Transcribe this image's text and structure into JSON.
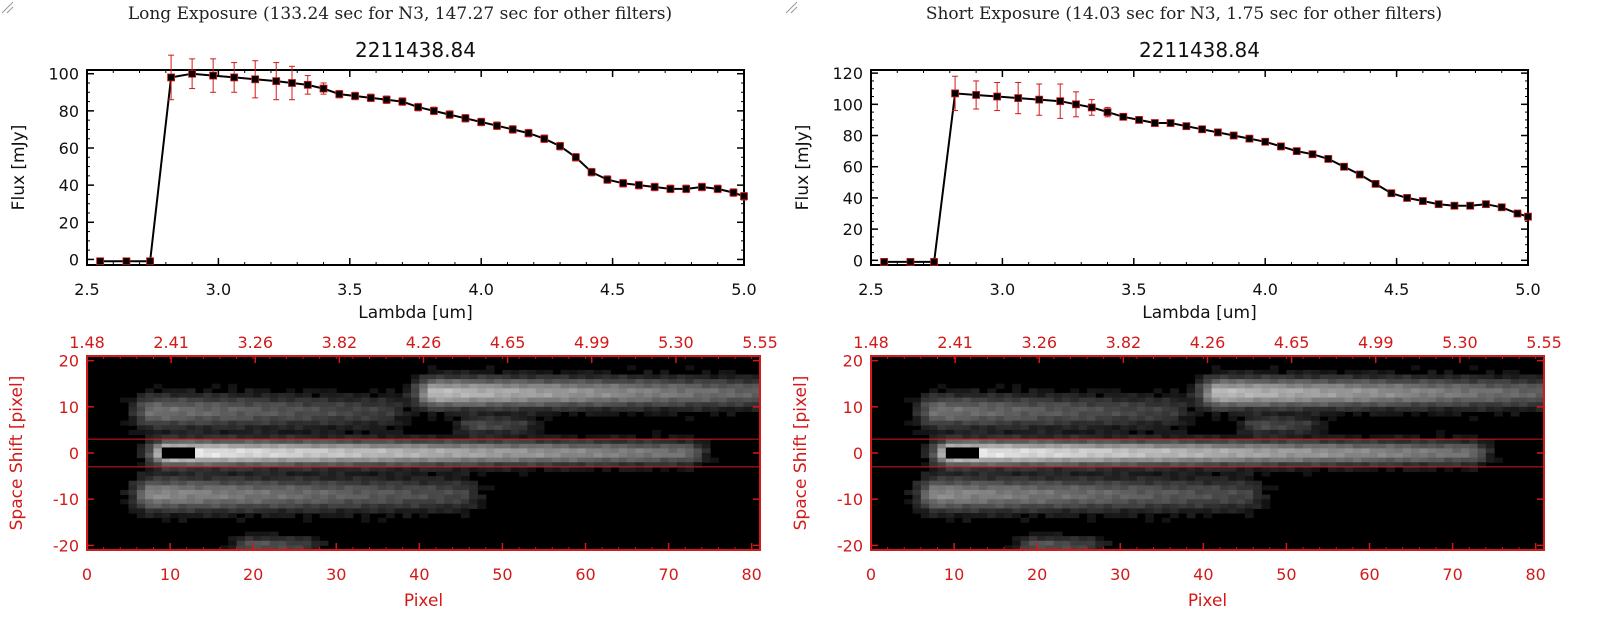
{
  "colors": {
    "red": "#d21a1a",
    "black": "#000000",
    "grey": "#333333"
  },
  "panels": [
    {
      "title": "Long Exposure (133.24 sec for N3, 147.27 sec for other filters)",
      "resize_icon": "resize-grip-icon"
    },
    {
      "title": "Short Exposure (14.03 sec for N3, 1.75 sec for other filters)",
      "resize_icon": "resize-grip-icon"
    }
  ],
  "chart_data": [
    {
      "type": "line",
      "title": "2211438.84",
      "xlabel": "Lambda [um]",
      "ylabel": "Flux [mJy]",
      "xlim": [
        2.5,
        5.0
      ],
      "ylim": [
        -3,
        102
      ],
      "xticks": [
        "2.5",
        "3.0",
        "3.5",
        "4.0",
        "4.5",
        "5.0"
      ],
      "yticks": [
        "0",
        "20",
        "40",
        "60",
        "80",
        "100"
      ],
      "ytick_values": [
        0,
        20,
        40,
        60,
        80,
        100
      ],
      "series": [
        {
          "name": "flux",
          "x": [
            2.55,
            2.65,
            2.74,
            2.82,
            2.9,
            2.98,
            3.06,
            3.14,
            3.22,
            3.28,
            3.34,
            3.4,
            3.46,
            3.52,
            3.58,
            3.64,
            3.7,
            3.76,
            3.82,
            3.88,
            3.94,
            4.0,
            4.06,
            4.12,
            4.18,
            4.24,
            4.3,
            4.36,
            4.42,
            4.48,
            4.54,
            4.6,
            4.66,
            4.72,
            4.78,
            4.84,
            4.9,
            4.96,
            5.0
          ],
          "y": [
            -1,
            -1,
            -1,
            98,
            100,
            99,
            98,
            97,
            96,
            95,
            94,
            92,
            89,
            88,
            87,
            86,
            85,
            82,
            80,
            78,
            76,
            74,
            72,
            70,
            68,
            65,
            61,
            55,
            47,
            43,
            41,
            40,
            39,
            38,
            38,
            39,
            38,
            36,
            34
          ],
          "yerr": [
            0,
            0,
            0,
            12,
            8,
            9,
            8,
            10,
            10,
            9,
            5,
            3,
            2,
            2,
            2,
            2,
            2,
            2,
            2,
            2,
            2,
            2,
            2,
            2,
            2,
            2,
            2,
            2,
            2,
            2,
            2,
            2,
            2,
            2,
            2,
            2,
            2,
            2,
            2
          ]
        }
      ]
    },
    {
      "type": "heatmap",
      "xlabel": "Pixel",
      "ylabel": "Space Shift [pixel]",
      "xlim": [
        0,
        81
      ],
      "ylim": [
        -21,
        21
      ],
      "xticks": [
        "0",
        "10",
        "20",
        "30",
        "40",
        "50",
        "60",
        "70",
        "80"
      ],
      "xtick_values": [
        0,
        10,
        20,
        30,
        40,
        50,
        60,
        70,
        80
      ],
      "yticks": [
        "20",
        "10",
        "0",
        "-10",
        "-20"
      ],
      "ytick_values": [
        20,
        10,
        0,
        -10,
        -20
      ],
      "top_axis_ticks": [
        "1.48",
        "2.41",
        "3.26",
        "3.82",
        "4.26",
        "4.65",
        "4.99",
        "5.30",
        "5.55"
      ],
      "band_lines": [
        3,
        -3
      ],
      "blobs": [
        {
          "x0": 10,
          "x1": 72,
          "y": 0,
          "h": 2.6,
          "amp": 0.95
        },
        {
          "x0": 42,
          "x1": 81,
          "y": 13,
          "h": 3.2,
          "amp": 0.75
        },
        {
          "x0": 8,
          "x1": 36,
          "y": 9,
          "h": 3.6,
          "amp": 0.45
        },
        {
          "x0": 8,
          "x1": 45,
          "y": -9,
          "h": 3.6,
          "amp": 0.55
        },
        {
          "x0": 20,
          "x1": 26,
          "y": -20,
          "h": 2.0,
          "amp": 0.35
        },
        {
          "x0": 47,
          "x1": 52,
          "y": 6,
          "h": 1.8,
          "amp": 0.3
        }
      ],
      "saturated": {
        "x0": 9,
        "x1": 13,
        "y": 0,
        "h": 1.2
      }
    },
    {
      "type": "line",
      "title": "2211438.84",
      "xlabel": "Lambda [um]",
      "ylabel": "Flux [mJy]",
      "xlim": [
        2.5,
        5.0
      ],
      "ylim": [
        -3,
        122
      ],
      "xticks": [
        "2.5",
        "3.0",
        "3.5",
        "4.0",
        "4.5",
        "5.0"
      ],
      "yticks": [
        "0",
        "20",
        "40",
        "60",
        "80",
        "100",
        "120"
      ],
      "ytick_values": [
        0,
        20,
        40,
        60,
        80,
        100,
        120
      ],
      "series": [
        {
          "name": "flux",
          "x": [
            2.55,
            2.65,
            2.74,
            2.82,
            2.9,
            2.98,
            3.06,
            3.14,
            3.22,
            3.28,
            3.34,
            3.4,
            3.46,
            3.52,
            3.58,
            3.64,
            3.7,
            3.76,
            3.82,
            3.88,
            3.94,
            4.0,
            4.06,
            4.12,
            4.18,
            4.24,
            4.3,
            4.36,
            4.42,
            4.48,
            4.54,
            4.6,
            4.66,
            4.72,
            4.78,
            4.84,
            4.9,
            4.96,
            5.0
          ],
          "y": [
            -1,
            -1,
            -1,
            107,
            106,
            105,
            104,
            103,
            102,
            100,
            98,
            95,
            92,
            90,
            88,
            88,
            86,
            84,
            82,
            80,
            78,
            76,
            73,
            70,
            68,
            65,
            60,
            55,
            49,
            43,
            40,
            38,
            36,
            35,
            35,
            36,
            34,
            30,
            28
          ],
          "yerr": [
            0,
            0,
            0,
            11,
            9,
            9,
            10,
            10,
            11,
            8,
            5,
            3,
            2,
            2,
            2,
            2,
            2,
            2,
            2,
            2,
            2,
            2,
            2,
            2,
            2,
            2,
            2,
            2,
            2,
            2,
            2,
            2,
            2,
            2,
            2,
            2,
            2,
            2,
            2
          ]
        }
      ]
    },
    {
      "type": "heatmap",
      "xlabel": "Pixel",
      "ylabel": "Space Shift [pixel]",
      "xlim": [
        0,
        81
      ],
      "ylim": [
        -21,
        21
      ],
      "xticks": [
        "0",
        "10",
        "20",
        "30",
        "40",
        "50",
        "60",
        "70",
        "80"
      ],
      "xtick_values": [
        0,
        10,
        20,
        30,
        40,
        50,
        60,
        70,
        80
      ],
      "yticks": [
        "20",
        "10",
        "0",
        "-10",
        "-20"
      ],
      "ytick_values": [
        20,
        10,
        0,
        -10,
        -20
      ],
      "top_axis_ticks": [
        "1.48",
        "2.41",
        "3.26",
        "3.82",
        "4.26",
        "4.65",
        "4.99",
        "5.30",
        "5.55"
      ],
      "band_lines": [
        3,
        -3
      ],
      "blobs": [
        {
          "x0": 10,
          "x1": 72,
          "y": 0,
          "h": 2.6,
          "amp": 0.95
        },
        {
          "x0": 42,
          "x1": 81,
          "y": 13,
          "h": 3.2,
          "amp": 0.75
        },
        {
          "x0": 8,
          "x1": 36,
          "y": 9,
          "h": 3.6,
          "amp": 0.45
        },
        {
          "x0": 8,
          "x1": 45,
          "y": -9,
          "h": 3.6,
          "amp": 0.55
        },
        {
          "x0": 20,
          "x1": 26,
          "y": -20,
          "h": 2.0,
          "amp": 0.35
        },
        {
          "x0": 47,
          "x1": 52,
          "y": 6,
          "h": 1.8,
          "amp": 0.3
        }
      ],
      "saturated": {
        "x0": 9,
        "x1": 13,
        "y": 0,
        "h": 1.2
      }
    }
  ]
}
